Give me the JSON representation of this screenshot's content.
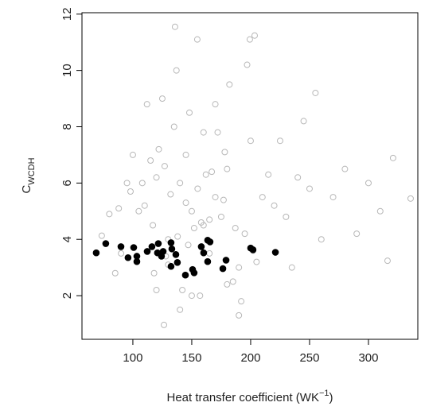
{
  "chart_data": {
    "type": "scatter",
    "xlabel": {
      "main": "Heat transfer coefficient (WK",
      "sup": "−1",
      "end": ")"
    },
    "ylabel": {
      "main": "C",
      "sub": "WCDH"
    },
    "xlim": [
      56.8,
      341.9
    ],
    "ylim": [
      0.45,
      12.05
    ],
    "xticks": [
      100,
      150,
      200,
      250,
      300
    ],
    "yticks": [
      2,
      4,
      6,
      8,
      10,
      12
    ],
    "series": [
      {
        "color": "#b8b8b8",
        "marker": "open",
        "x": [
          135.8,
          154.7,
          199.3,
          203.4,
          320.9,
          335.8,
          316.2,
          126.4,
          73.6,
          150,
          160,
          140,
          170,
          130,
          180,
          145,
          165,
          155,
          175,
          120,
          190,
          110,
          200,
          135,
          185,
          125,
          195,
          115,
          205,
          148,
          158,
          142,
          172,
          132,
          182,
          147,
          167,
          157,
          177,
          122,
          192,
          112,
          202,
          137,
          187,
          127,
          197,
          117,
          210,
          90,
          95,
          85,
          100,
          105,
          220,
          230,
          240,
          250,
          260,
          270,
          280,
          290,
          300,
          310,
          215,
          225,
          235,
          245,
          255,
          160,
          150,
          140,
          130,
          170,
          180,
          120,
          190,
          165,
          145,
          80,
          88,
          98,
          108,
          118,
          128,
          138,
          152,
          162,
          178
        ],
        "values": [
          11.55,
          11.1,
          11.1,
          11.24,
          6.89,
          5.45,
          3.24,
          0.96,
          4.13,
          5.0,
          4.5,
          6.0,
          5.5,
          4.0,
          6.5,
          7.0,
          3.5,
          5.8,
          4.8,
          6.2,
          3.0,
          5.2,
          7.5,
          8.0,
          2.5,
          9.0,
          4.2,
          6.8,
          3.2,
          8.5,
          4.6,
          2.2,
          7.8,
          5.6,
          9.5,
          3.8,
          6.4,
          2.0,
          5.4,
          7.2,
          1.8,
          8.8,
          3.6,
          10.0,
          4.4,
          6.6,
          10.2,
          4.5,
          5.5,
          3.5,
          6.0,
          2.8,
          7.0,
          5.0,
          5.2,
          4.8,
          6.2,
          5.8,
          4.0,
          5.5,
          6.5,
          4.2,
          6.0,
          5.0,
          6.3,
          7.5,
          3.0,
          8.2,
          9.2,
          7.8,
          2.0,
          1.5,
          3.1,
          8.8,
          2.4,
          2.2,
          1.3,
          4.7,
          5.3,
          4.9,
          5.1,
          5.7,
          6.0,
          2.8,
          3.4,
          4.1,
          4.4,
          6.3,
          7.1
        ]
      },
      {
        "color": "#000000",
        "marker": "filled",
        "x": [
          68.9,
          77.0,
          89.9,
          95.9,
          100.7,
          103.4,
          103.4,
          112.2,
          116.2,
          121.6,
          120.9,
          124.3,
          125.7,
          132.4,
          133.1,
          136.5,
          137.8,
          132.4,
          144.6,
          150.7,
          152.0,
          158.1,
          160.1,
          163.5,
          165.5,
          163.5,
          179.1,
          176.4,
          200.0,
          202.0,
          221.0
        ],
        "values": [
          3.52,
          3.85,
          3.74,
          3.35,
          3.71,
          3.4,
          3.21,
          3.57,
          3.74,
          3.85,
          3.52,
          3.4,
          3.57,
          3.88,
          3.66,
          3.46,
          3.18,
          3.04,
          2.73,
          2.93,
          2.81,
          3.74,
          3.52,
          3.97,
          3.91,
          3.21,
          3.26,
          2.96,
          3.69,
          3.63,
          3.54
        ]
      }
    ]
  }
}
